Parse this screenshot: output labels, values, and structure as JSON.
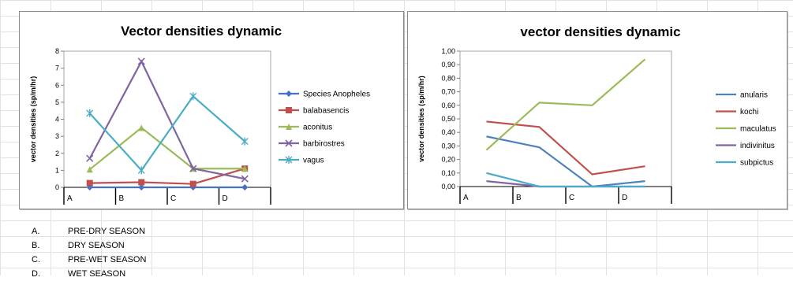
{
  "chart_data": [
    {
      "type": "line",
      "title": "Vector densities dynamic",
      "ylabel": "vector densities (sp/m/hr)",
      "xlabel": "",
      "categories": [
        "A",
        "B",
        "C",
        "D"
      ],
      "ylim": [
        0,
        8
      ],
      "yticks": [
        "0",
        "1",
        "2",
        "3",
        "4",
        "5",
        "6",
        "7",
        "8"
      ],
      "grid": false,
      "legend_position": "right",
      "series": [
        {
          "name": "Species Anopheles",
          "color": "#4472c4",
          "marker": "diamond",
          "values": [
            0,
            0,
            0,
            0
          ]
        },
        {
          "name": "balabasencis",
          "color": "#c0504d",
          "marker": "square",
          "values": [
            0.25,
            0.3,
            0.2,
            1.1
          ]
        },
        {
          "name": "aconitus",
          "color": "#9bbb59",
          "marker": "triangle",
          "values": [
            1.05,
            3.5,
            1.1,
            1.1
          ]
        },
        {
          "name": "barbirostres",
          "color": "#8064a2",
          "marker": "x",
          "values": [
            1.7,
            7.4,
            1.1,
            0.5
          ]
        },
        {
          "name": "vagus",
          "color": "#4bacc6",
          "marker": "star",
          "values": [
            4.35,
            1.0,
            5.35,
            2.7
          ]
        }
      ]
    },
    {
      "type": "line",
      "title": "vector densities dynamic",
      "ylabel": "vector densities (sp/m/hr)",
      "xlabel": "",
      "categories": [
        "A",
        "B",
        "C",
        "D"
      ],
      "ylim": [
        0,
        1
      ],
      "yticks": [
        "0,00",
        "0,10",
        "0,20",
        "0,30",
        "0,40",
        "0,50",
        "0,60",
        "0,70",
        "0,80",
        "0,90",
        "1,00"
      ],
      "grid": false,
      "legend_position": "right",
      "series": [
        {
          "name": "anularis",
          "color": "#4f81bd",
          "values": [
            0.37,
            0.29,
            0.0,
            0.04
          ]
        },
        {
          "name": "kochi",
          "color": "#c0504d",
          "values": [
            0.48,
            0.44,
            0.09,
            0.15
          ]
        },
        {
          "name": "maculatus",
          "color": "#9bbb59",
          "values": [
            0.27,
            0.62,
            0.6,
            0.94
          ]
        },
        {
          "name": "indivinitus",
          "color": "#8064a2",
          "values": [
            0.04,
            0.0,
            0.0,
            0.0
          ]
        },
        {
          "name": "subpictus",
          "color": "#4bacc6",
          "values": [
            0.1,
            0.0,
            0.0,
            0.0
          ]
        }
      ]
    }
  ],
  "notes": [
    {
      "letter": "A.",
      "label": "PRE-DRY SEASON"
    },
    {
      "letter": "B.",
      "label": "DRY SEASON"
    },
    {
      "letter": "C.",
      "label": "PRE-WET SEASON"
    },
    {
      "letter": "D.",
      "label": "WET SEASON"
    }
  ]
}
